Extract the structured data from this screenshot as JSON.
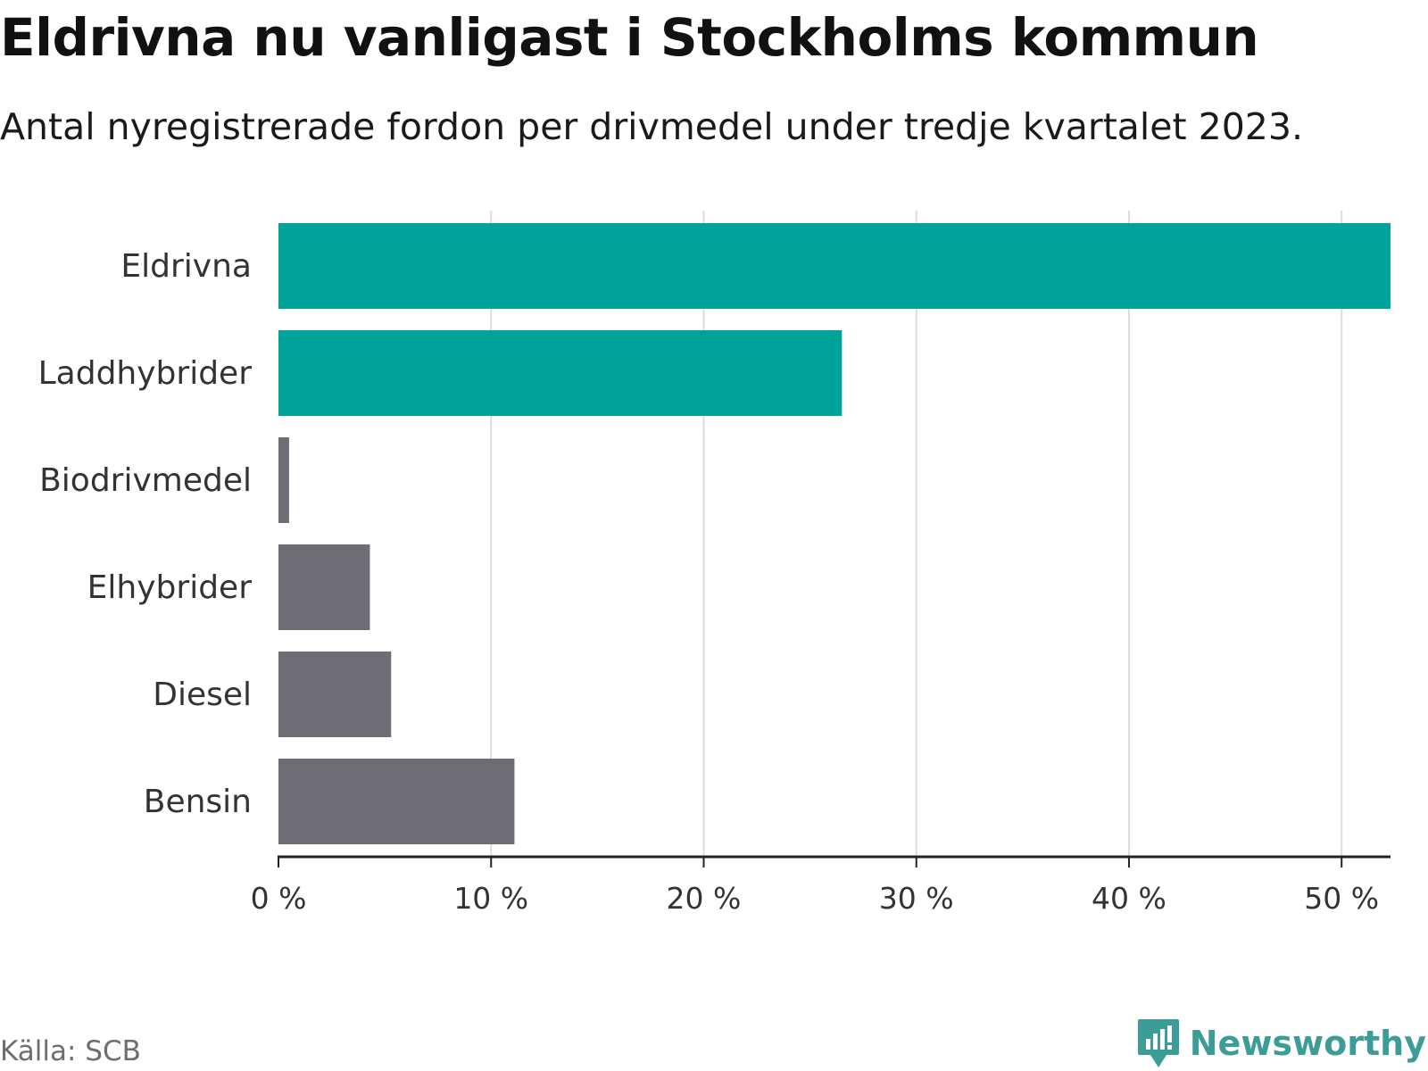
{
  "header": {
    "title": "Eldrivna nu vanligast i Stockholms kommun",
    "subtitle": "Antal nyregistrerade fordon per drivmedel under tredje kvartalet 2023."
  },
  "footer": {
    "source": "Källa: SCB",
    "brand": "Newsworthy",
    "brand_icon": "chart-speech-bubble-icon"
  },
  "colors": {
    "highlight": "#00a39a",
    "default": "#6e6d75",
    "grid": "#dcdcdc",
    "axis": "#222222",
    "brand": "#3c9c97"
  },
  "chart_data": {
    "type": "bar",
    "orientation": "horizontal",
    "categories": [
      "Eldrivna",
      "Laddhybrider",
      "Biodrivmedel",
      "Elhybrider",
      "Diesel",
      "Bensin"
    ],
    "values": [
      52.3,
      26.5,
      0.5,
      4.3,
      5.3,
      11.1
    ],
    "highlighted": [
      true,
      true,
      false,
      false,
      false,
      false
    ],
    "unit": "%",
    "xlim": [
      0,
      52.3
    ],
    "xticks": [
      0,
      10,
      20,
      30,
      40,
      50
    ],
    "xtick_labels": [
      "0 %",
      "10 %",
      "20 %",
      "30 %",
      "40 %",
      "50 %"
    ],
    "title": "Eldrivna nu vanligast i Stockholms kommun",
    "xlabel": "",
    "ylabel": "",
    "grid": true
  }
}
